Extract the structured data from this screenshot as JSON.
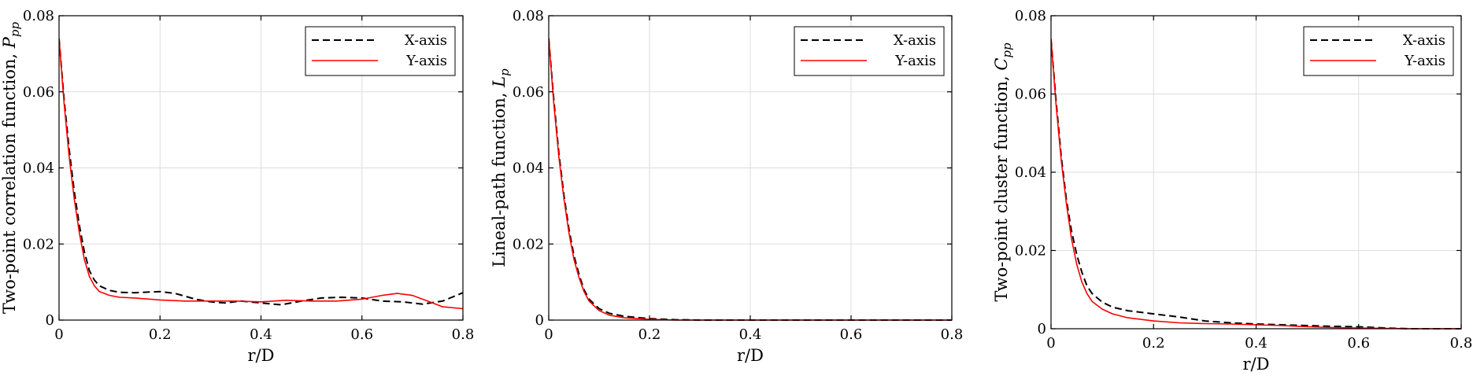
{
  "chart_data": [
    {
      "type": "line",
      "xlabel": "r/D",
      "ylabel": "Two-point correlation function, ",
      "ylabel_symbol": "P",
      "ylabel_sub": "pp",
      "xlim": [
        0,
        0.8
      ],
      "ylim": [
        0,
        0.08
      ],
      "xticks": [
        0,
        0.2,
        0.4,
        0.6,
        0.8
      ],
      "xtick_labels": [
        "0",
        "0.2",
        "0.4",
        "0.6",
        "0.8"
      ],
      "yticks": [
        0,
        0.02,
        0.04,
        0.06,
        0.08
      ],
      "ytick_labels": [
        "0",
        "0.02",
        "0.04",
        "0.06",
        "0.08"
      ],
      "grid": true,
      "legend": "top-right",
      "series": [
        {
          "name": "X-axis",
          "color": "#000000",
          "style": "dashed",
          "x": [
            0,
            0.01,
            0.02,
            0.03,
            0.04,
            0.05,
            0.06,
            0.07,
            0.08,
            0.1,
            0.12,
            0.15,
            0.2,
            0.23,
            0.27,
            0.3,
            0.33,
            0.36,
            0.4,
            0.44,
            0.48,
            0.52,
            0.56,
            0.6,
            0.64,
            0.68,
            0.72,
            0.76,
            0.8
          ],
          "y": [
            0.074,
            0.058,
            0.045,
            0.034,
            0.025,
            0.018,
            0.013,
            0.0105,
            0.009,
            0.0078,
            0.0073,
            0.0072,
            0.0075,
            0.007,
            0.0055,
            0.0048,
            0.0045,
            0.005,
            0.0045,
            0.004,
            0.005,
            0.0058,
            0.006,
            0.0058,
            0.005,
            0.0048,
            0.0042,
            0.005,
            0.0072
          ]
        },
        {
          "name": "Y-axis",
          "color": "#ff0000",
          "style": "solid",
          "x": [
            0,
            0.01,
            0.02,
            0.03,
            0.04,
            0.05,
            0.06,
            0.07,
            0.08,
            0.1,
            0.12,
            0.15,
            0.2,
            0.25,
            0.3,
            0.35,
            0.4,
            0.45,
            0.5,
            0.55,
            0.6,
            0.64,
            0.67,
            0.7,
            0.73,
            0.76,
            0.8
          ],
          "y": [
            0.074,
            0.057,
            0.043,
            0.032,
            0.023,
            0.016,
            0.0115,
            0.009,
            0.0075,
            0.0065,
            0.006,
            0.0058,
            0.0053,
            0.005,
            0.005,
            0.005,
            0.0048,
            0.0052,
            0.005,
            0.005,
            0.0055,
            0.0065,
            0.007,
            0.0065,
            0.005,
            0.0035,
            0.003
          ]
        }
      ]
    },
    {
      "type": "line",
      "xlabel": "r/D",
      "ylabel": "Lineal-path function, ",
      "ylabel_symbol": "L",
      "ylabel_sub": "p",
      "xlim": [
        0,
        0.8
      ],
      "ylim": [
        0,
        0.08
      ],
      "xticks": [
        0,
        0.2,
        0.4,
        0.6,
        0.8
      ],
      "xtick_labels": [
        "0",
        "0.2",
        "0.4",
        "0.6",
        "0.8"
      ],
      "yticks": [
        0,
        0.02,
        0.04,
        0.06,
        0.08
      ],
      "ytick_labels": [
        "0",
        "0.02",
        "0.04",
        "0.06",
        "0.08"
      ],
      "grid": true,
      "legend": "top-right",
      "series": [
        {
          "name": "X-axis",
          "color": "#000000",
          "style": "dashed",
          "x": [
            0,
            0.01,
            0.02,
            0.03,
            0.04,
            0.05,
            0.06,
            0.07,
            0.08,
            0.1,
            0.12,
            0.15,
            0.2,
            0.25,
            0.3,
            0.4,
            0.5,
            0.6,
            0.7,
            0.8
          ],
          "y": [
            0.074,
            0.058,
            0.044,
            0.033,
            0.024,
            0.017,
            0.012,
            0.008,
            0.0055,
            0.003,
            0.0018,
            0.001,
            0.0004,
            0.0001,
            0,
            0,
            0,
            0,
            0,
            0
          ]
        },
        {
          "name": "Y-axis",
          "color": "#ff0000",
          "style": "solid",
          "x": [
            0,
            0.01,
            0.02,
            0.03,
            0.04,
            0.05,
            0.06,
            0.07,
            0.08,
            0.1,
            0.12,
            0.15,
            0.2,
            0.25,
            0.3,
            0.4,
            0.5,
            0.6,
            0.7,
            0.8
          ],
          "y": [
            0.074,
            0.057,
            0.043,
            0.032,
            0.023,
            0.016,
            0.0112,
            0.0075,
            0.005,
            0.0025,
            0.0013,
            0.0006,
            0.0002,
            0,
            0,
            0,
            0,
            0,
            0,
            0
          ]
        }
      ]
    },
    {
      "type": "line",
      "xlabel": "r/D",
      "ylabel": "Two-point cluster function, ",
      "ylabel_symbol": "C",
      "ylabel_sub": "pp",
      "xlim": [
        0,
        0.8
      ],
      "ylim": [
        0,
        0.08
      ],
      "xticks": [
        0,
        0.2,
        0.4,
        0.6,
        0.8
      ],
      "xtick_labels": [
        "0",
        "0.2",
        "0.4",
        "0.6",
        "0.8"
      ],
      "yticks": [
        0,
        0.02,
        0.04,
        0.06,
        0.08
      ],
      "ytick_labels": [
        "0",
        "0.02",
        "0.04",
        "0.06",
        "0.08"
      ],
      "grid": true,
      "legend": "top-right",
      "series": [
        {
          "name": "X-axis",
          "color": "#000000",
          "style": "dashed",
          "x": [
            0,
            0.01,
            0.02,
            0.03,
            0.04,
            0.05,
            0.06,
            0.07,
            0.08,
            0.1,
            0.12,
            0.15,
            0.2,
            0.25,
            0.3,
            0.35,
            0.4,
            0.45,
            0.5,
            0.55,
            0.6,
            0.65,
            0.7,
            0.8
          ],
          "y": [
            0.074,
            0.058,
            0.044,
            0.033,
            0.025,
            0.019,
            0.0145,
            0.011,
            0.009,
            0.0068,
            0.0055,
            0.0046,
            0.0038,
            0.003,
            0.002,
            0.0015,
            0.0012,
            0.001,
            0.0008,
            0.0006,
            0.0005,
            0.0002,
            0,
            0
          ]
        },
        {
          "name": "Y-axis",
          "color": "#ff0000",
          "style": "solid",
          "x": [
            0,
            0.01,
            0.02,
            0.03,
            0.04,
            0.05,
            0.06,
            0.07,
            0.08,
            0.1,
            0.12,
            0.15,
            0.2,
            0.25,
            0.3,
            0.35,
            0.4,
            0.45,
            0.5,
            0.55,
            0.6,
            0.65,
            0.7,
            0.8
          ],
          "y": [
            0.074,
            0.057,
            0.043,
            0.032,
            0.023,
            0.0165,
            0.012,
            0.009,
            0.007,
            0.005,
            0.0038,
            0.0028,
            0.002,
            0.0015,
            0.0013,
            0.0012,
            0.001,
            0.0008,
            0.0005,
            0.0003,
            0.0002,
            0.0001,
            0,
            0
          ]
        }
      ]
    }
  ]
}
